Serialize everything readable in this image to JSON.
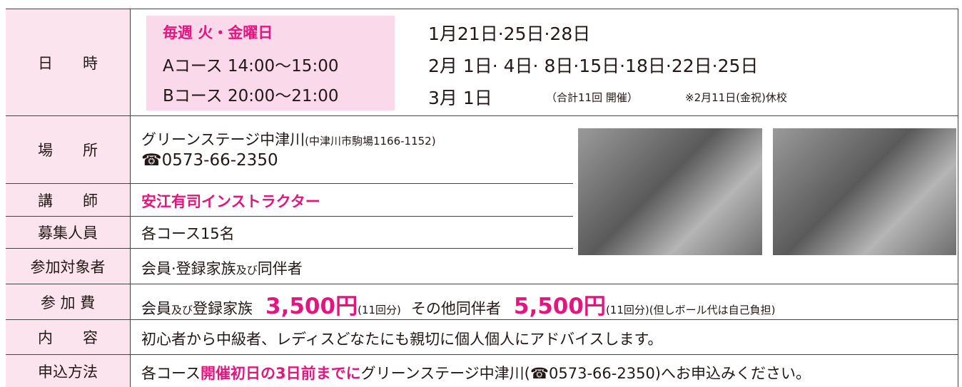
{
  "table": {
    "rows": [
      {
        "label": "日　　時",
        "weekly": "毎週 火・金曜日",
        "course_a": "Aコース 14:00〜15:00",
        "course_b": "Bコース 20:00〜21:00",
        "dates": [
          "1月21日·25日·28日",
          "2月  1日·  4日·  8日·15日·18日·22日·25日",
          "3月  1日"
        ],
        "note1": "（合計11回 開催）",
        "note2": "※2月11日(金祝)休校"
      },
      {
        "label": "場　　所",
        "place": "グリーンステージ中津川",
        "address": "(中津川市駒場1166-1152)",
        "phone": "☎0573-66-2350"
      },
      {
        "label": "講　　師",
        "value": "安江有司インストラクター"
      },
      {
        "label": "募集人員",
        "value": "各コース15名"
      },
      {
        "label": "参加対象者",
        "parts": [
          "会員·登録家族",
          "及び",
          "同伴者"
        ]
      },
      {
        "label": "参 加 費",
        "parts": [
          "会員",
          "及び",
          "登録家族",
          "3,500円",
          "(11回分)",
          "その他同伴者",
          "5,500円",
          "(11回分)(但しボール代は自己負担)"
        ]
      },
      {
        "label": "内　　容",
        "value": "初心者から中級者、レディスどなたにも親切に個人個人にアドバイスします。"
      },
      {
        "label": "申込方法",
        "parts": [
          "各コース",
          "開催初日の3日前までに",
          "グリーンステージ中津川(☎0573-66-2350)へお申込みください。"
        ]
      }
    ]
  }
}
